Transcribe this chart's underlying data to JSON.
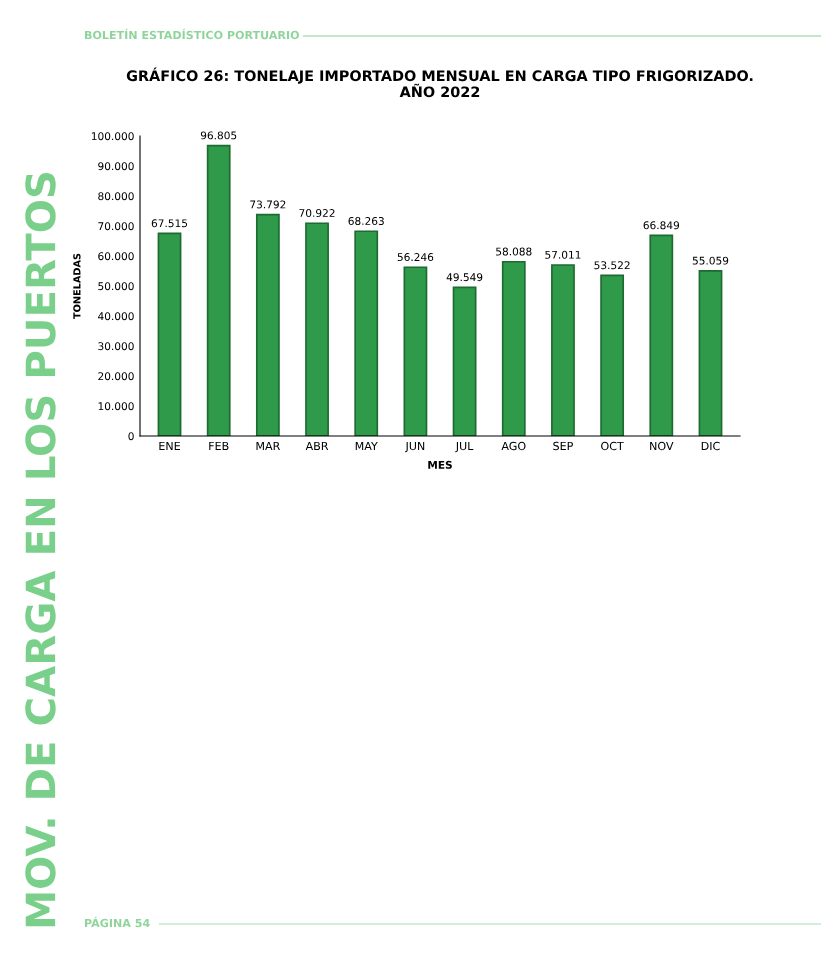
{
  "chart_data": {
    "type": "bar",
    "title": "GRÁFICO 26: TONELAJE IMPORTADO MENSUAL EN CARGA TIPO FRIGORIZADO.\nAÑO 2022",
    "xlabel": "MES",
    "ylabel": "TONELADAS",
    "categories": [
      "ENE",
      "FEB",
      "MAR",
      "ABR",
      "MAY",
      "JUN",
      "JUL",
      "AGO",
      "SEP",
      "OCT",
      "NOV",
      "DIC"
    ],
    "values": [
      67515,
      96805,
      73792,
      70922,
      68263,
      56246,
      49549,
      58088,
      57011,
      53522,
      66849,
      55059
    ],
    "value_labels": [
      "67.515",
      "96.805",
      "73.792",
      "70.922",
      "68.263",
      "56.246",
      "49.549",
      "58.088",
      "57.011",
      "53.522",
      "66.849",
      "55.059"
    ],
    "color": "#2e9a4a",
    "ylim": [
      0,
      100000
    ],
    "yticks": [
      {
        "value": 0,
        "label": "0"
      },
      {
        "value": 10000,
        "label": "10.000"
      },
      {
        "value": 20000,
        "label": "20.000"
      },
      {
        "value": 30000,
        "label": "30.000"
      },
      {
        "value": 40000,
        "label": "40.000"
      },
      {
        "value": 50000,
        "label": "50.000"
      },
      {
        "value": 60000,
        "label": "60.000"
      },
      {
        "value": 70000,
        "label": "70.000"
      },
      {
        "value": 80000,
        "label": "80.000"
      },
      {
        "value": 90000,
        "label": "90.000"
      },
      {
        "value": 100000,
        "label": "100.000"
      }
    ],
    "grid": false,
    "legend": false,
    "annotations": [
      "BOLETÍN ESTADÍSTICO PORTUARIO",
      "MOV. DE CARGA EN LOS PUERTOS",
      "PÁGINA 54"
    ]
  }
}
